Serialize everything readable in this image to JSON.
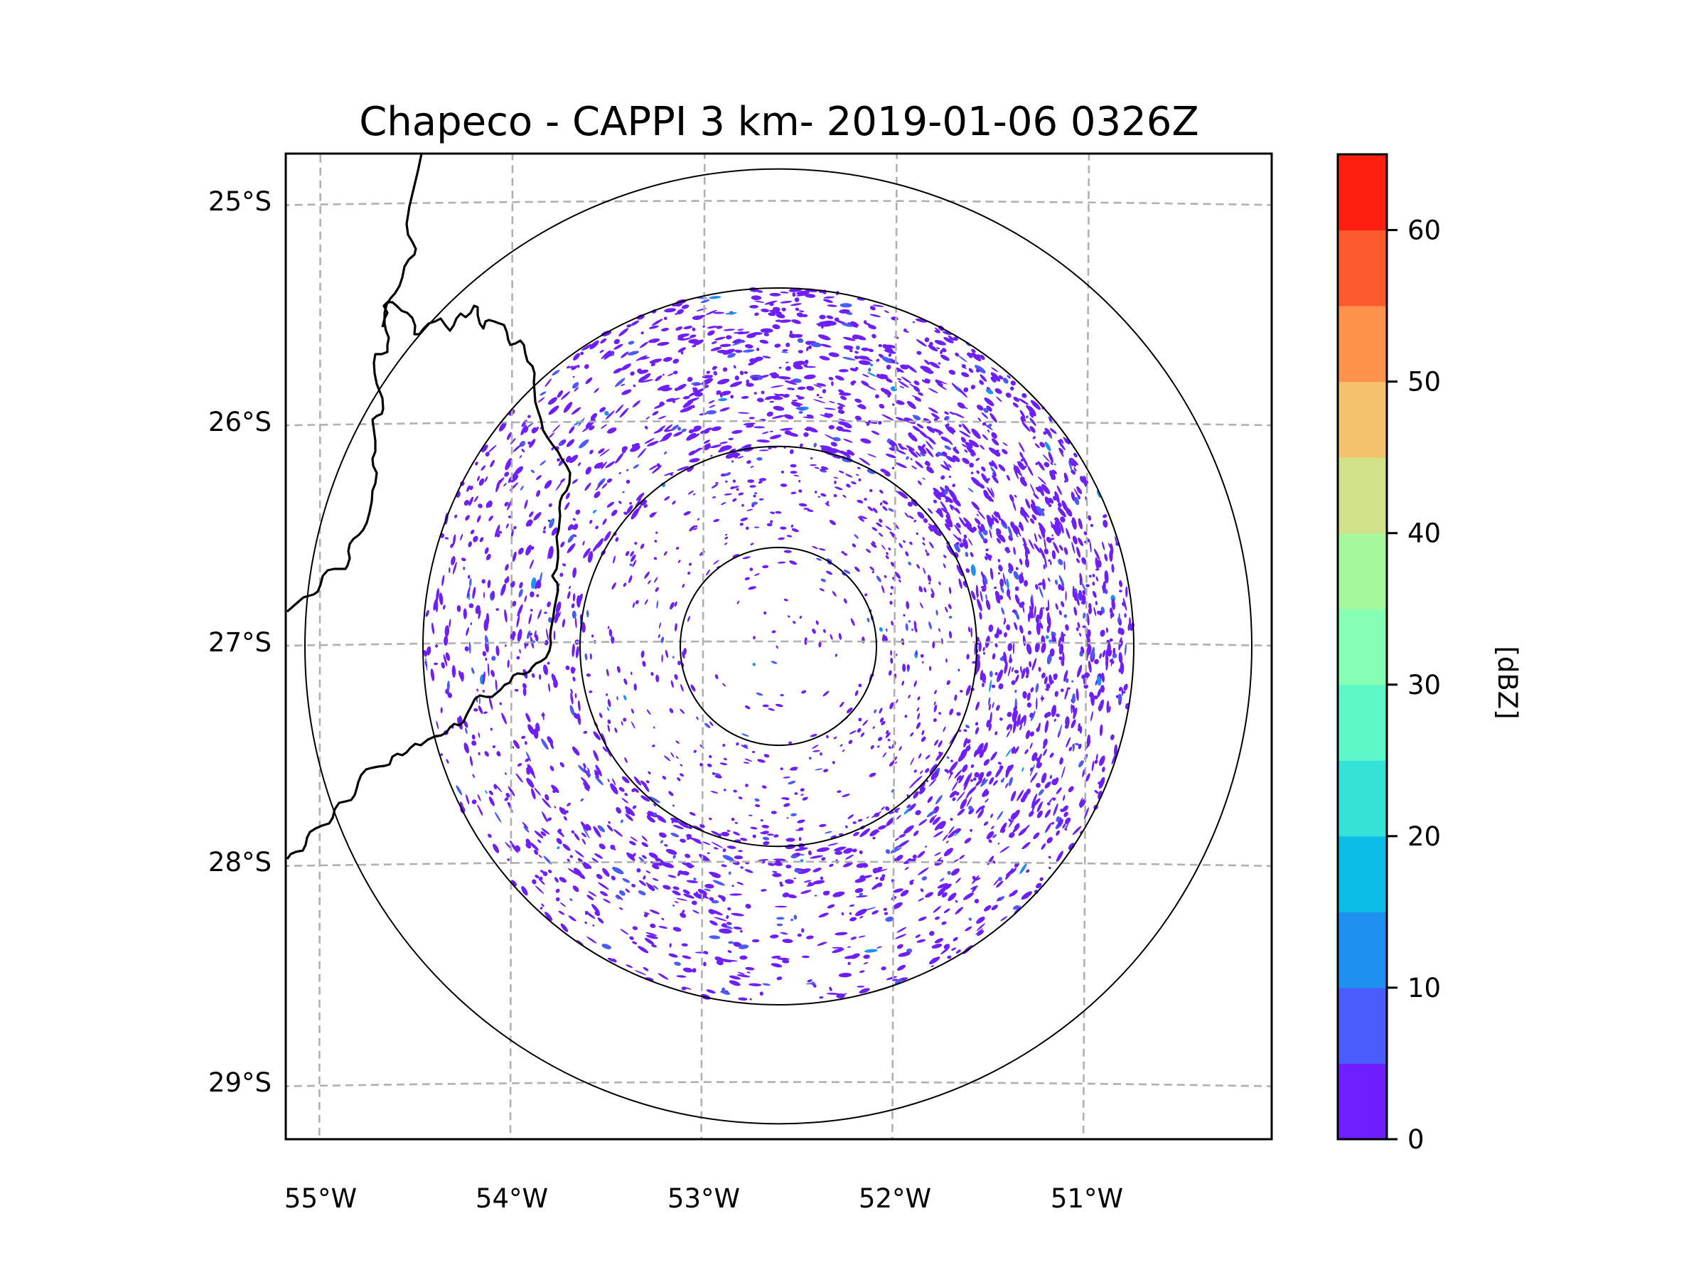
{
  "title": "Chapeco - CAPPI 3 km- 2019-01-06 0326Z",
  "chart_data": {
    "type": "heatmap",
    "title": "Chapeco - CAPPI 3 km- 2019-01-06 0326Z",
    "projection": "map (lon/lat)",
    "xlabel": "",
    "ylabel": "",
    "x_ticks": [
      "55°W",
      "54°W",
      "53°W",
      "52°W",
      "51°W"
    ],
    "x_tick_values": [
      -55,
      -54,
      -53,
      -52,
      -51
    ],
    "y_ticks": [
      "25°S",
      "26°S",
      "27°S",
      "28°S",
      "29°S"
    ],
    "y_tick_values": [
      -25,
      -26,
      -27,
      -28,
      -29
    ],
    "xlim": [
      -55.2,
      -50.1
    ],
    "ylim": [
      -29.3,
      -24.8
    ],
    "grid": true,
    "radar_site": {
      "name": "Chapeco",
      "lon": -52.6,
      "lat": -27.03
    },
    "range_rings_count": 4,
    "field": "reflectivity",
    "observed_values": "mostly 0-5 dBZ speckle, scattered 5-15 dBZ, densest to the northeast and in the 100-180 km annulus",
    "colorbar": {
      "label": "[dBZ]",
      "ticks": [
        0,
        10,
        20,
        30,
        40,
        50,
        60
      ],
      "tick_labels": [
        "0",
        "10",
        "20",
        "30",
        "40",
        "50",
        "60"
      ],
      "range": [
        0,
        65
      ],
      "levels": [
        {
          "min": 0,
          "max": 5,
          "color": "#6e1eff"
        },
        {
          "min": 5,
          "max": 10,
          "color": "#4a5cfc"
        },
        {
          "min": 10,
          "max": 15,
          "color": "#1e90f0"
        },
        {
          "min": 15,
          "max": 20,
          "color": "#0abce6"
        },
        {
          "min": 20,
          "max": 25,
          "color": "#34e2d8"
        },
        {
          "min": 25,
          "max": 30,
          "color": "#5ef8c8"
        },
        {
          "min": 30,
          "max": 35,
          "color": "#86feb4"
        },
        {
          "min": 35,
          "max": 40,
          "color": "#a6f89c"
        },
        {
          "min": 40,
          "max": 45,
          "color": "#d2e28a"
        },
        {
          "min": 45,
          "max": 50,
          "color": "#f4c16c"
        },
        {
          "min": 50,
          "max": 55,
          "color": "#ff924c"
        },
        {
          "min": 55,
          "max": 60,
          "color": "#ff5a2e"
        },
        {
          "min": 60,
          "max": 65,
          "color": "#ff1f10"
        }
      ]
    }
  }
}
